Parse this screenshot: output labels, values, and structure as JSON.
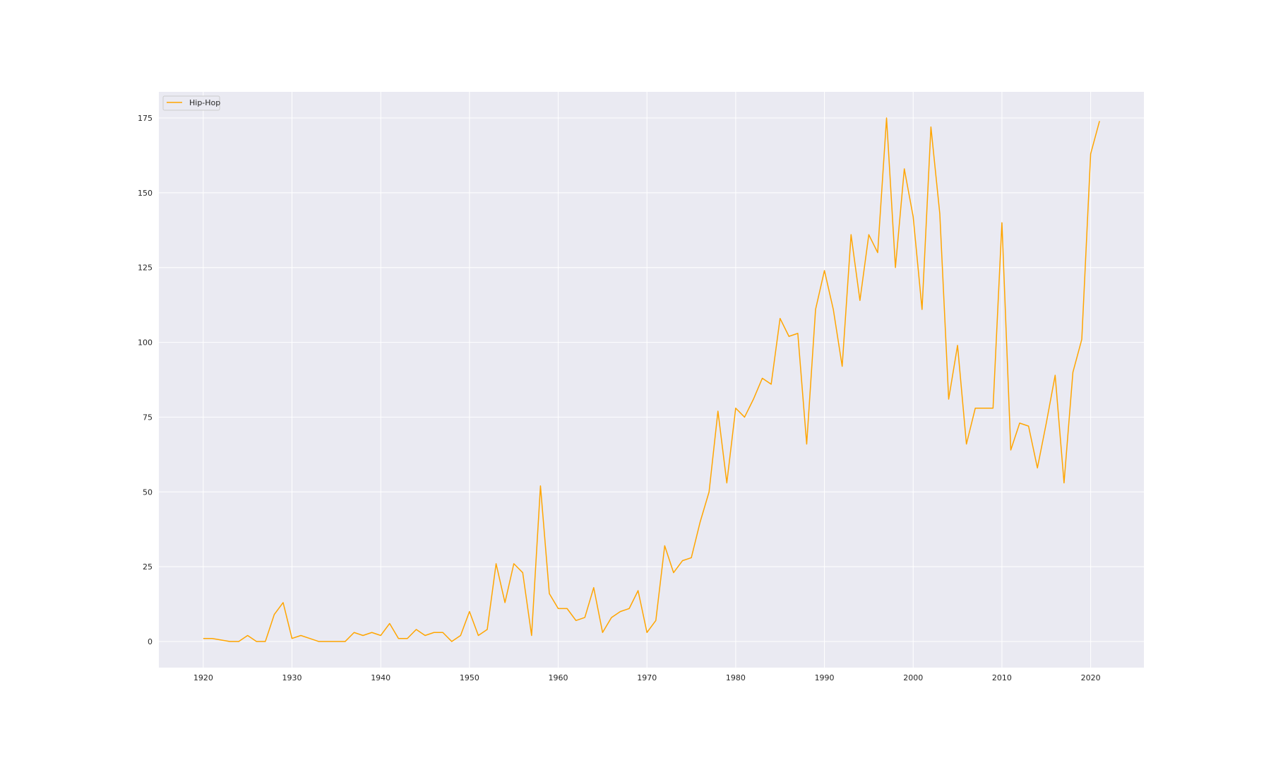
{
  "chart_data": {
    "type": "line",
    "title": "",
    "xlabel": "",
    "ylabel": "",
    "xlim": [
      1915,
      2026
    ],
    "ylim": [
      -8.75,
      183.75
    ],
    "xticks": [
      1920,
      1930,
      1940,
      1950,
      1960,
      1970,
      1980,
      1990,
      2000,
      2010,
      2020
    ],
    "yticks": [
      0,
      25,
      50,
      75,
      100,
      125,
      150,
      175
    ],
    "grid": true,
    "legend_position": "top-left",
    "background_color": "#eaeaf2",
    "grid_color": "#ffffff",
    "series": [
      {
        "name": "Hip-Hop",
        "color": "#ffa500",
        "x": [
          1920,
          1921,
          1922,
          1923,
          1924,
          1925,
          1926,
          1927,
          1928,
          1929,
          1930,
          1931,
          1932,
          1933,
          1934,
          1935,
          1936,
          1937,
          1938,
          1939,
          1940,
          1941,
          1942,
          1943,
          1944,
          1945,
          1946,
          1947,
          1948,
          1949,
          1950,
          1951,
          1952,
          1953,
          1954,
          1955,
          1956,
          1957,
          1958,
          1959,
          1960,
          1961,
          1962,
          1963,
          1964,
          1965,
          1966,
          1967,
          1968,
          1969,
          1970,
          1971,
          1972,
          1973,
          1974,
          1975,
          1976,
          1977,
          1978,
          1979,
          1980,
          1981,
          1982,
          1983,
          1984,
          1985,
          1986,
          1987,
          1988,
          1989,
          1990,
          1991,
          1992,
          1993,
          1994,
          1995,
          1996,
          1997,
          1998,
          1999,
          2000,
          2001,
          2002,
          2003,
          2004,
          2005,
          2006,
          2007,
          2008,
          2009,
          2010,
          2011,
          2012,
          2013,
          2014,
          2015,
          2016,
          2017,
          2018,
          2019,
          2020,
          2021
        ],
        "values": [
          1,
          1,
          0.5,
          0,
          0,
          2,
          0,
          0,
          9,
          13,
          1,
          2,
          1,
          0,
          0,
          0,
          0,
          3,
          2,
          3,
          2,
          6,
          1,
          1,
          4,
          2,
          3,
          3,
          0,
          2,
          10,
          2,
          4,
          26,
          13,
          26,
          23,
          2,
          52,
          16,
          11,
          11,
          7,
          8,
          18,
          3,
          8,
          10,
          11,
          17,
          3,
          7,
          32,
          23,
          27,
          28,
          40,
          50,
          77,
          53,
          78,
          75,
          81,
          88,
          86,
          108,
          102,
          103,
          66,
          111,
          124,
          111,
          92,
          136,
          114,
          136,
          130,
          175,
          125,
          158,
          142,
          111,
          172,
          143,
          81,
          99,
          66,
          78,
          78,
          78,
          140,
          64,
          73,
          72,
          58,
          73,
          89,
          53,
          90,
          101,
          163,
          174
        ]
      }
    ]
  }
}
